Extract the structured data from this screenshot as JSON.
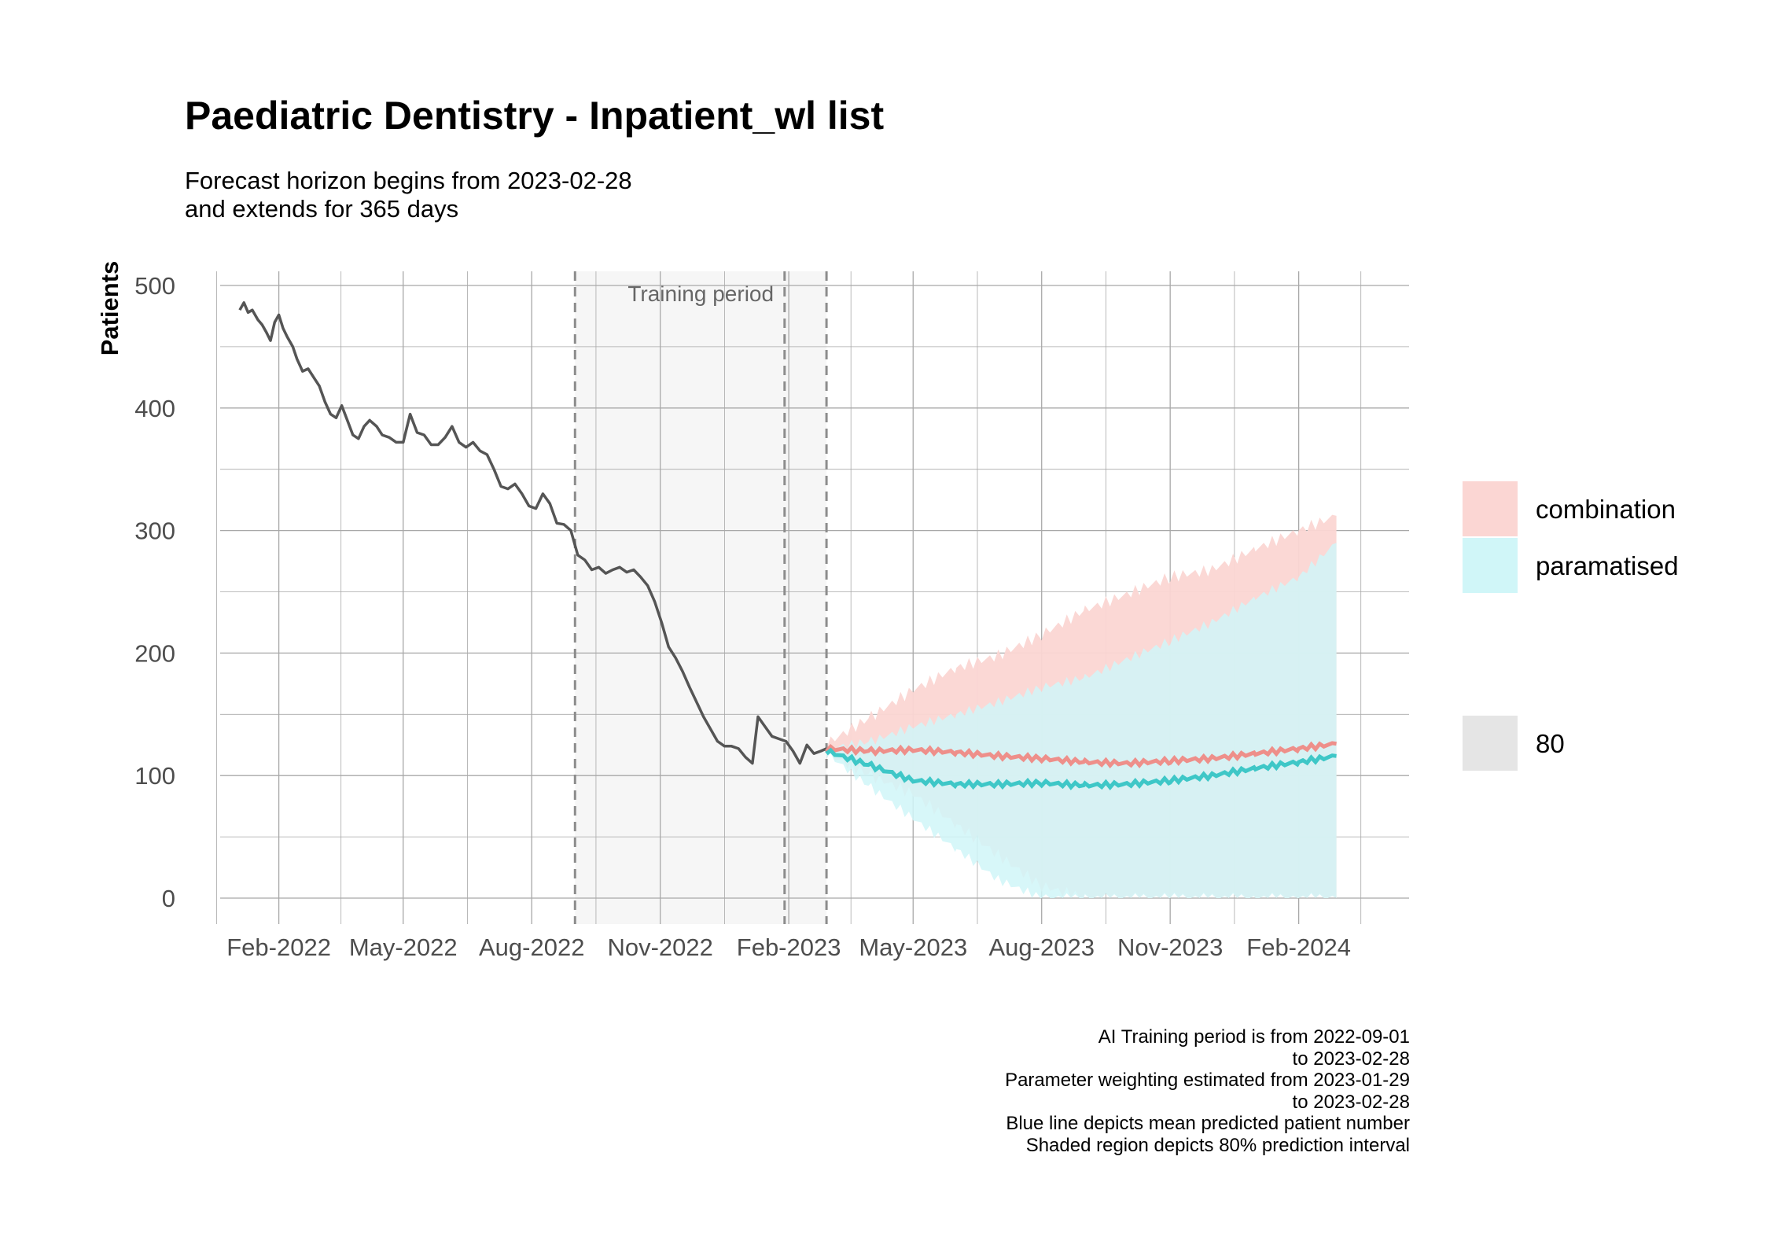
{
  "title": "Paediatric Dentistry - Inpatient_wl list",
  "subtitle_line1": "Forecast horizon begins from 2023-02-28",
  "subtitle_line2": "and extends for 365 days",
  "caption_lines": [
    "AI Training period is from 2022-09-01",
    "to 2023-02-28",
    "Parameter weighting estimated from 2023-01-29",
    "to 2023-02-28",
    "Blue line depicts mean predicted patient number",
    "Shaded region depicts 80% prediction interval"
  ],
  "colors": {
    "history_line": "#555555",
    "combination_line": "#ee8f8a",
    "combination_band": "#fbd6d3",
    "paramatised_line": "#3ec7c7",
    "paramatised_band": "#d0f6f8",
    "overlap_band": "#d7efef",
    "training_shade": "#f6f6f6",
    "grid": "#a8a8a8",
    "interval_key": "#e5e5e5"
  },
  "chart_data": {
    "type": "line",
    "title": "Paediatric Dentistry - Inpatient_wl list",
    "xlabel": "",
    "ylabel": "Patients",
    "ylim": [
      0,
      500
    ],
    "xlim": [
      "2021-12-21",
      "2024-04-20"
    ],
    "yticks": [
      0,
      100,
      200,
      300,
      400,
      500
    ],
    "xticks": [
      "2022-02-01",
      "2022-05-01",
      "2022-08-01",
      "2022-11-01",
      "2023-02-01",
      "2023-05-01",
      "2023-08-01",
      "2023-11-01",
      "2024-02-01"
    ],
    "xtick_labels": [
      "Feb-2022",
      "May-2022",
      "Aug-2022",
      "Nov-2022",
      "Feb-2023",
      "May-2023",
      "Aug-2023",
      "Nov-2023",
      "Feb-2024"
    ],
    "grid": true,
    "legend_position": "right",
    "training_period": {
      "start": "2022-09-01",
      "end": "2023-02-28",
      "label": "Training period"
    },
    "weighting_start": "2023-01-29",
    "forecast_start": "2023-02-28",
    "history": {
      "name": "",
      "points": [
        [
          "2022-01-04",
          480
        ],
        [
          "2022-01-07",
          486
        ],
        [
          "2022-01-10",
          478
        ],
        [
          "2022-01-13",
          480
        ],
        [
          "2022-01-17",
          472
        ],
        [
          "2022-01-20",
          468
        ],
        [
          "2022-01-23",
          462
        ],
        [
          "2022-01-26",
          455
        ],
        [
          "2022-01-29",
          470
        ],
        [
          "2022-02-01",
          476
        ],
        [
          "2022-02-04",
          465
        ],
        [
          "2022-02-07",
          458
        ],
        [
          "2022-02-11",
          450
        ],
        [
          "2022-02-14",
          440
        ],
        [
          "2022-02-18",
          430
        ],
        [
          "2022-02-22",
          432
        ],
        [
          "2022-02-26",
          425
        ],
        [
          "2022-03-02",
          418
        ],
        [
          "2022-03-06",
          405
        ],
        [
          "2022-03-10",
          395
        ],
        [
          "2022-03-14",
          392
        ],
        [
          "2022-03-18",
          402
        ],
        [
          "2022-03-22",
          390
        ],
        [
          "2022-03-26",
          378
        ],
        [
          "2022-03-30",
          375
        ],
        [
          "2022-04-03",
          385
        ],
        [
          "2022-04-07",
          390
        ],
        [
          "2022-04-12",
          385
        ],
        [
          "2022-04-16",
          378
        ],
        [
          "2022-04-21",
          376
        ],
        [
          "2022-04-26",
          372
        ],
        [
          "2022-05-01",
          372
        ],
        [
          "2022-05-06",
          395
        ],
        [
          "2022-05-11",
          380
        ],
        [
          "2022-05-16",
          378
        ],
        [
          "2022-05-21",
          370
        ],
        [
          "2022-05-26",
          370
        ],
        [
          "2022-05-31",
          376
        ],
        [
          "2022-06-05",
          385
        ],
        [
          "2022-06-10",
          372
        ],
        [
          "2022-06-15",
          368
        ],
        [
          "2022-06-20",
          372
        ],
        [
          "2022-06-25",
          365
        ],
        [
          "2022-06-30",
          362
        ],
        [
          "2022-07-05",
          350
        ],
        [
          "2022-07-10",
          336
        ],
        [
          "2022-07-15",
          334
        ],
        [
          "2022-07-20",
          338
        ],
        [
          "2022-07-25",
          330
        ],
        [
          "2022-07-30",
          320
        ],
        [
          "2022-08-04",
          318
        ],
        [
          "2022-08-09",
          330
        ],
        [
          "2022-08-14",
          322
        ],
        [
          "2022-08-19",
          306
        ],
        [
          "2022-08-24",
          305
        ],
        [
          "2022-08-29",
          300
        ],
        [
          "2022-09-03",
          280
        ],
        [
          "2022-09-08",
          276
        ],
        [
          "2022-09-13",
          268
        ],
        [
          "2022-09-18",
          270
        ],
        [
          "2022-09-23",
          265
        ],
        [
          "2022-09-28",
          268
        ],
        [
          "2022-10-03",
          270
        ],
        [
          "2022-10-08",
          266
        ],
        [
          "2022-10-13",
          268
        ],
        [
          "2022-10-18",
          262
        ],
        [
          "2022-10-23",
          255
        ],
        [
          "2022-10-28",
          242
        ],
        [
          "2022-11-02",
          225
        ],
        [
          "2022-11-07",
          205
        ],
        [
          "2022-11-12",
          196
        ],
        [
          "2022-11-17",
          185
        ],
        [
          "2022-11-22",
          172
        ],
        [
          "2022-11-27",
          160
        ],
        [
          "2022-12-02",
          148
        ],
        [
          "2022-12-07",
          138
        ],
        [
          "2022-12-12",
          128
        ],
        [
          "2022-12-17",
          124
        ],
        [
          "2022-12-22",
          124
        ],
        [
          "2022-12-27",
          122
        ],
        [
          "2023-01-01",
          115
        ],
        [
          "2023-01-06",
          110
        ],
        [
          "2023-01-10",
          148
        ],
        [
          "2023-01-15",
          140
        ],
        [
          "2023-01-20",
          132
        ],
        [
          "2023-01-25",
          130
        ],
        [
          "2023-01-30",
          128
        ],
        [
          "2023-02-04",
          120
        ],
        [
          "2023-02-09",
          110
        ],
        [
          "2023-02-14",
          125
        ],
        [
          "2023-02-19",
          118
        ],
        [
          "2023-02-24",
          120
        ],
        [
          "2023-02-28",
          122
        ]
      ]
    },
    "series": [
      {
        "name": "combination",
        "mean": [
          [
            "2023-02-28",
            122
          ],
          [
            "2023-04-01",
            120
          ],
          [
            "2023-05-01",
            121
          ],
          [
            "2023-06-01",
            119
          ],
          [
            "2023-07-01",
            116
          ],
          [
            "2023-08-01",
            114
          ],
          [
            "2023-09-01",
            111
          ],
          [
            "2023-10-01",
            110
          ],
          [
            "2023-11-01",
            112
          ],
          [
            "2023-12-01",
            114
          ],
          [
            "2024-01-01",
            118
          ],
          [
            "2024-02-01",
            122
          ],
          [
            "2024-02-28",
            126
          ]
        ],
        "lower": [
          [
            "2023-02-28",
            118
          ],
          [
            "2023-04-01",
            100
          ],
          [
            "2023-05-01",
            85
          ],
          [
            "2023-06-01",
            60
          ],
          [
            "2023-07-01",
            35
          ],
          [
            "2023-08-01",
            10
          ],
          [
            "2023-09-01",
            0
          ],
          [
            "2023-10-01",
            0
          ],
          [
            "2023-11-01",
            0
          ],
          [
            "2023-12-01",
            0
          ],
          [
            "2024-01-01",
            0
          ],
          [
            "2024-02-01",
            0
          ],
          [
            "2024-02-28",
            0
          ]
        ],
        "upper": [
          [
            "2023-02-28",
            126
          ],
          [
            "2023-04-01",
            148
          ],
          [
            "2023-05-01",
            170
          ],
          [
            "2023-06-01",
            188
          ],
          [
            "2023-07-01",
            198
          ],
          [
            "2023-08-01",
            215
          ],
          [
            "2023-09-01",
            235
          ],
          [
            "2023-10-01",
            248
          ],
          [
            "2023-11-01",
            262
          ],
          [
            "2023-12-01",
            268
          ],
          [
            "2024-01-01",
            285
          ],
          [
            "2024-02-01",
            300
          ],
          [
            "2024-02-28",
            312
          ]
        ]
      },
      {
        "name": "paramatised",
        "mean": [
          [
            "2023-02-28",
            120
          ],
          [
            "2023-04-01",
            108
          ],
          [
            "2023-05-01",
            96
          ],
          [
            "2023-06-01",
            93
          ],
          [
            "2023-07-01",
            93
          ],
          [
            "2023-08-01",
            94
          ],
          [
            "2023-09-01",
            92
          ],
          [
            "2023-10-01",
            93
          ],
          [
            "2023-11-01",
            96
          ],
          [
            "2023-12-01",
            100
          ],
          [
            "2024-01-01",
            106
          ],
          [
            "2024-02-01",
            111
          ],
          [
            "2024-02-28",
            116
          ]
        ],
        "lower": [
          [
            "2023-02-28",
            118
          ],
          [
            "2023-04-01",
            90
          ],
          [
            "2023-05-01",
            65
          ],
          [
            "2023-06-01",
            40
          ],
          [
            "2023-07-01",
            15
          ],
          [
            "2023-08-01",
            0
          ],
          [
            "2023-09-01",
            0
          ],
          [
            "2023-10-01",
            0
          ],
          [
            "2023-11-01",
            0
          ],
          [
            "2023-12-01",
            0
          ],
          [
            "2024-01-01",
            0
          ],
          [
            "2024-02-01",
            0
          ],
          [
            "2024-02-28",
            0
          ]
        ],
        "upper": [
          [
            "2023-02-28",
            122
          ],
          [
            "2023-04-01",
            128
          ],
          [
            "2023-05-01",
            140
          ],
          [
            "2023-06-01",
            150
          ],
          [
            "2023-07-01",
            160
          ],
          [
            "2023-08-01",
            172
          ],
          [
            "2023-09-01",
            180
          ],
          [
            "2023-10-01",
            195
          ],
          [
            "2023-11-01",
            210
          ],
          [
            "2023-12-01",
            225
          ],
          [
            "2024-01-01",
            245
          ],
          [
            "2024-02-01",
            262
          ],
          [
            "2024-02-28",
            290
          ]
        ]
      }
    ],
    "legend": {
      "items": [
        "combination",
        "paramatised"
      ],
      "interval_label": "80"
    }
  }
}
